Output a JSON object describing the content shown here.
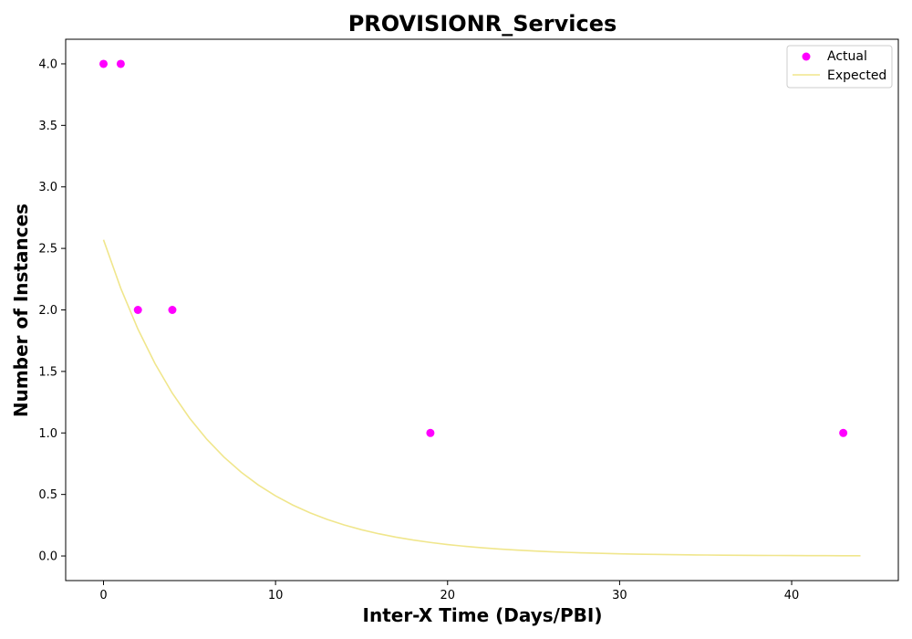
{
  "chart_data": {
    "type": "scatter",
    "title": "PROVISIONR_Services",
    "xlabel": "Inter-X Time (Days/PBI)",
    "ylabel": "Number of Instances",
    "xlim": [
      -2.2,
      46.2
    ],
    "ylim": [
      -0.2,
      4.2
    ],
    "xticks": [
      0,
      10,
      20,
      30,
      40
    ],
    "yticks": [
      0.0,
      0.5,
      1.0,
      1.5,
      2.0,
      2.5,
      3.0,
      3.5,
      4.0
    ],
    "ytick_labels": [
      "0.0",
      "0.5",
      "1.0",
      "1.5",
      "2.0",
      "2.5",
      "3.0",
      "3.5",
      "4.0"
    ],
    "grid": false,
    "legend_position": "top-right",
    "series": [
      {
        "name": "Actual",
        "kind": "scatter",
        "color": "#ff00ff",
        "points": [
          [
            0,
            4
          ],
          [
            1,
            4
          ],
          [
            2,
            2
          ],
          [
            4,
            2
          ],
          [
            19,
            1
          ],
          [
            43,
            1
          ]
        ]
      },
      {
        "name": "Expected",
        "kind": "line",
        "color": "#f0e68c",
        "curve": "exponential",
        "amplitude": 2.57,
        "rate": 0.166,
        "x_range": [
          0,
          44
        ]
      }
    ]
  }
}
